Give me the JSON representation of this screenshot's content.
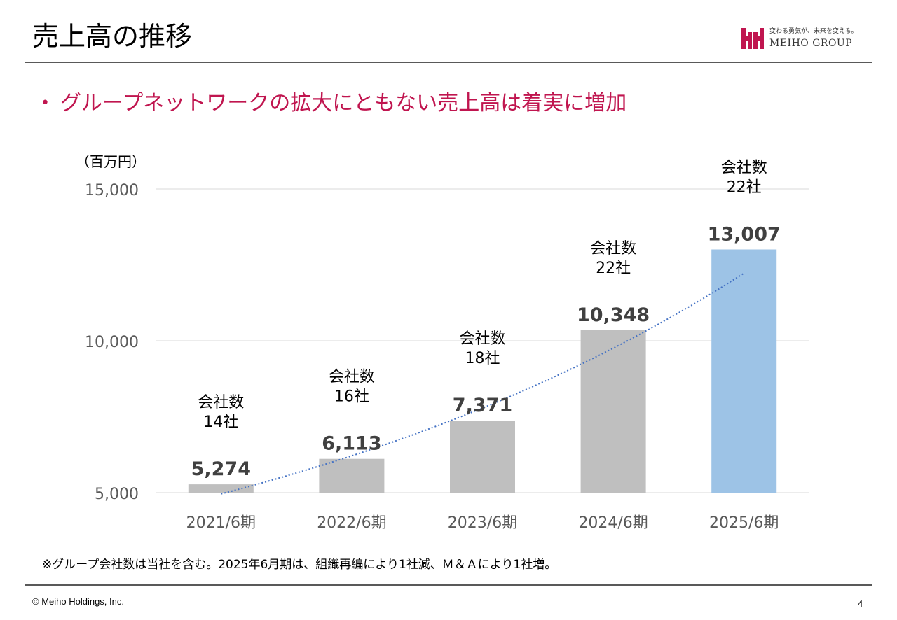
{
  "page": {
    "title": "売上高の推移",
    "bullet": "グループネットワークの拡大にともない売上高は着実に増加",
    "footnote": "※グループ会社数は当社を含む。2025年6月期は、組織再編により1社減、Ｍ＆Ａにより1社増。",
    "copyright": "© Meiho Holdings, Inc.",
    "page_number": "4"
  },
  "logo": {
    "tagline": "変わる勇気が、未来を変える。",
    "name": "MEIHO GROUP",
    "color": "#c0154f"
  },
  "colors": {
    "accent": "#c0154f",
    "bar_default": "#bfbfbf",
    "bar_highlight": "#9dc3e6",
    "trendline": "#4472c4",
    "gridline": "#d9d9d9",
    "rule": "#595959"
  },
  "chart_data": {
    "type": "bar",
    "unit_label": "（百万円）",
    "categories": [
      "2021/6期",
      "2022/6期",
      "2023/6期",
      "2024/6期",
      "2025/6期"
    ],
    "values": [
      5274,
      6113,
      7371,
      10348,
      13007
    ],
    "value_labels": [
      "5,274",
      "6,113",
      "7,371",
      "10,348",
      "13,007"
    ],
    "company_count_heading": "会社数",
    "company_counts": [
      "14社",
      "16社",
      "18社",
      "22社",
      "22社"
    ],
    "highlight_index": 4,
    "ylim": [
      5000,
      15000
    ],
    "yticks": [
      5000,
      10000,
      15000
    ],
    "ytick_labels": [
      "5,000",
      "10,000",
      "15,000"
    ],
    "grid": true,
    "trendline": "exponential, dotted"
  }
}
